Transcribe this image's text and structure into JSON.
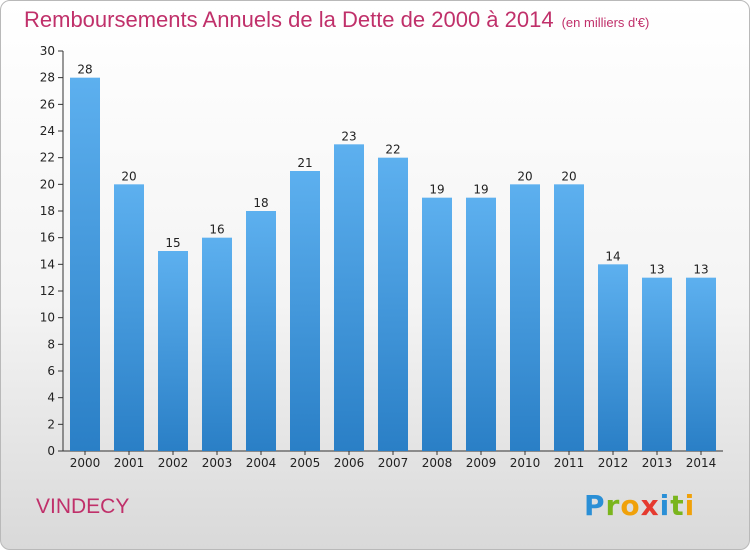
{
  "header": {
    "title": "Remboursements Annuels de la Dette de 2000 à 2014",
    "unit": "(en milliers d'€)"
  },
  "footer": {
    "place": "VINDECY",
    "logo": "Proxiti"
  },
  "colors": {
    "title": "#c0306a",
    "bar_top": "#5db0ef",
    "bar_bottom": "#2a7fc6"
  },
  "chart_data": {
    "type": "bar",
    "title": "Remboursements Annuels de la Dette de 2000 à 2014",
    "subtitle": "(en milliers d'€)",
    "categories": [
      "2000",
      "2001",
      "2002",
      "2003",
      "2004",
      "2005",
      "2006",
      "2007",
      "2008",
      "2009",
      "2010",
      "2011",
      "2012",
      "2013",
      "2014"
    ],
    "values": [
      28,
      20,
      15,
      16,
      18,
      21,
      23,
      22,
      19,
      19,
      20,
      20,
      14,
      13,
      13
    ],
    "ylim": [
      0,
      30
    ],
    "yticks": [
      0,
      2,
      4,
      6,
      8,
      10,
      12,
      14,
      16,
      18,
      20,
      22,
      24,
      26,
      28,
      30
    ],
    "grid": false,
    "data_labels": true
  }
}
